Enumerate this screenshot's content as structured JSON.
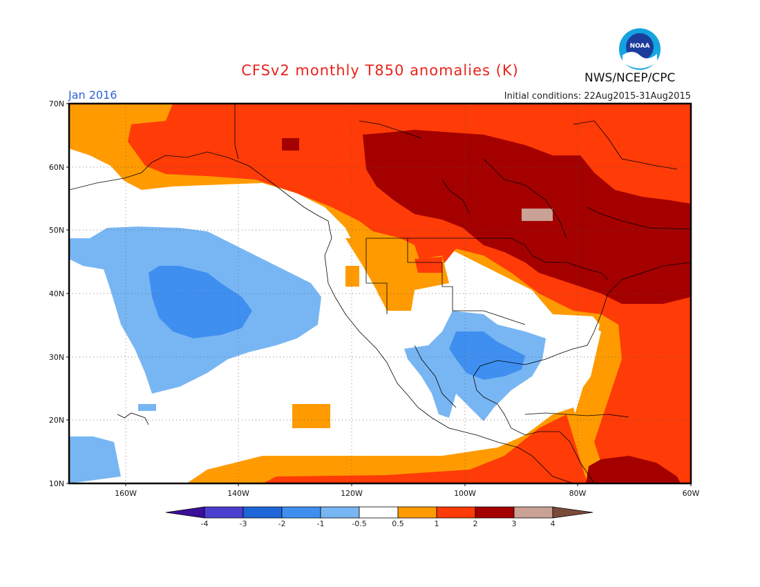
{
  "header": {
    "title": "CFSv2 monthly T850 anomalies (K)",
    "org": "NWS/NCEP/CPC",
    "valid_month": "Jan 2016",
    "initial_conditions": "Initial conditions: 22Aug2015-31Aug2015",
    "logo_text": "NOAA"
  },
  "axes": {
    "lat_labels": [
      "70N",
      "60N",
      "50N",
      "40N",
      "30N",
      "20N",
      "10N"
    ],
    "lon_labels": [
      "160W",
      "140W",
      "120W",
      "100W",
      "80W",
      "60W"
    ]
  },
  "colorbar": {
    "labels": [
      "-4",
      "-3",
      "-2",
      "-1",
      "-0.5",
      "0.5",
      "1",
      "2",
      "3",
      "4"
    ],
    "colors": [
      "#3a0f9a",
      "#4b3fd0",
      "#1f66d9",
      "#3f8ff0",
      "#78b6f3",
      "#ffffff",
      "#ff9b00",
      "#ff3b07",
      "#a40000",
      "#c9a195",
      "#7a4a38"
    ]
  },
  "map_palette": {
    "ocean_land_background": "#ffffff",
    "neutral": "#ffffff",
    "warm_1": "#ff9b00",
    "warm_2": "#ff3b07",
    "warm_3": "#a40000",
    "warm_4": "#c9a195",
    "cool_1": "#78b6f3",
    "cool_2": "#3f8ff0"
  }
}
